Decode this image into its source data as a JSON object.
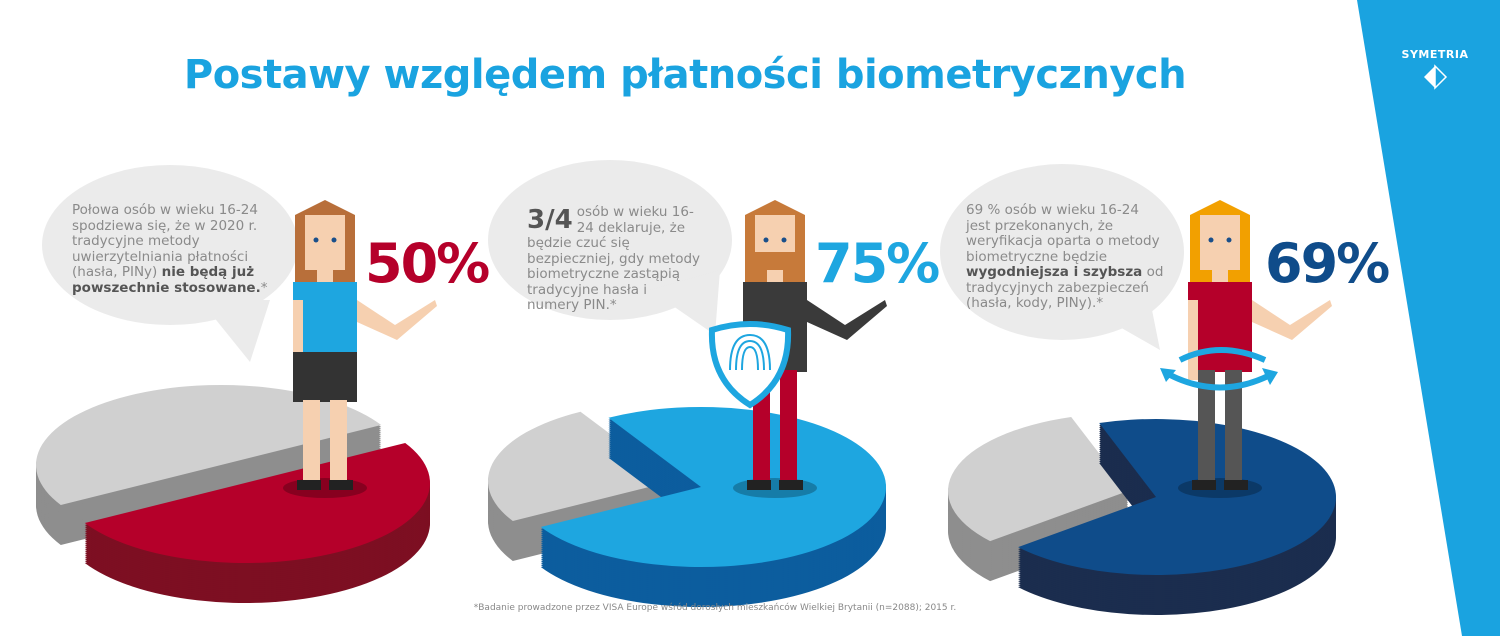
{
  "title": "Postawy względem płatności biometrycznych",
  "brand": {
    "name": "SYMETRIA",
    "logo_icon": "half-diamond-icon"
  },
  "colors": {
    "title": "#1aa3e0",
    "red": "#b5002a",
    "blue": "#1ea6e0",
    "dark_blue": "#0f4c8a",
    "gray": "#d0d0d0",
    "bubble": "#ebebeb"
  },
  "panels": [
    {
      "text_before": "Połowa osób w wieku 16-24 spodziewa się, że w 2020 r. tradycyjne metody uwierzytelniania płatności (hasła, PINy) ",
      "text_bold": "nie będą już powszechnie stosowane.",
      "text_after": "*",
      "percent_label": "50%",
      "value": 50,
      "color": "#b5002a"
    },
    {
      "fraction": "3/4",
      "text_before": "osób w wieku 16-24 deklaruje, że będzie czuć się bezpieczniej, gdy metody biometryczne zastąpią tradycyjne hasła i numery PIN.*",
      "percent_label": "75%",
      "value": 75,
      "color": "#1ea6e0",
      "prop_icon": "fingerprint-shield-icon"
    },
    {
      "text_before": "69 % osób w wieku 16-24 jest przekonanych, że weryfikacja oparta o metody biometryczne będzie ",
      "text_bold": "wygodniejsza i szybsza",
      "text_after": " od tradycyjnych zabezpieczeń (hasła, kody, PINy).*",
      "percent_label": "69%",
      "value": 69,
      "color": "#0f4c8a",
      "prop_icon": "rotate-arrows-icon"
    }
  ],
  "footnote": "*Badanie prowadzone przez VISA Europe wśród dorosłych mieszkańców Wielkiej Brytanii (n=2088); 2015 r."
}
